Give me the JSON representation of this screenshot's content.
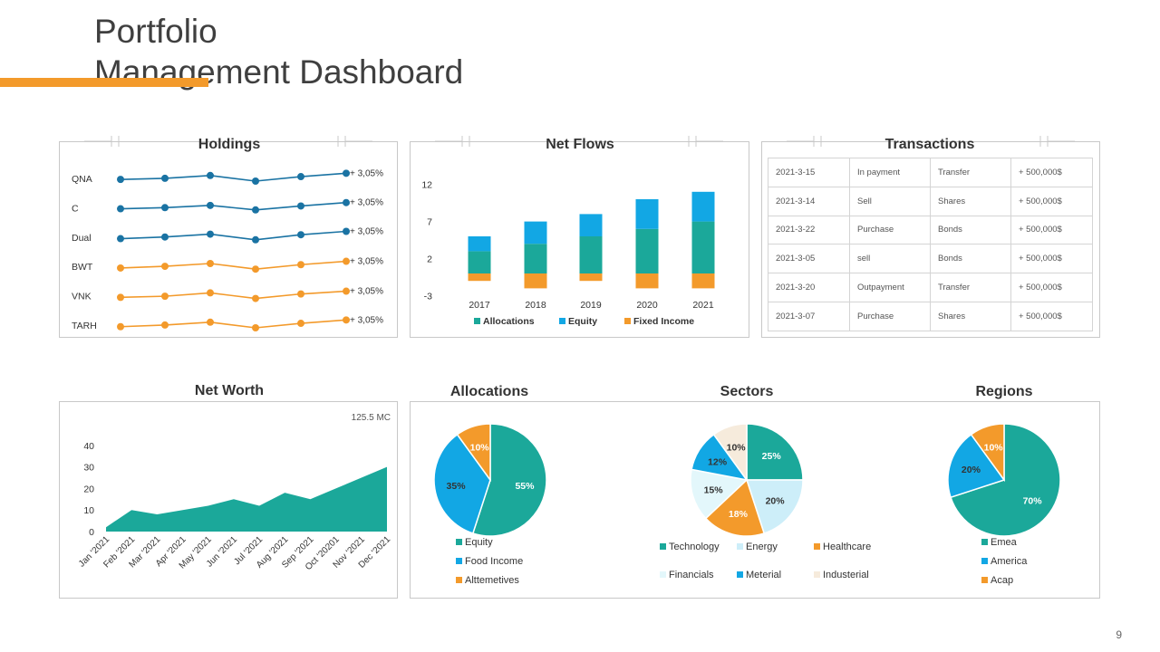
{
  "page": {
    "title_line1": "Portfolio",
    "title_line2": "Management Dashboard",
    "page_number": "9"
  },
  "colors": {
    "accent": "#f39a2b",
    "teal": "#1ba89a",
    "blue": "#12a7e4",
    "navy": "#1a73a3",
    "orange": "#f39a2b",
    "lightblue": "#cdeef9",
    "cream": "#f6ebdc"
  },
  "holdings": {
    "title": "Holdings",
    "rows": [
      {
        "label": "QNA",
        "change": "+ 3,05%",
        "color": "#1a73a3",
        "values": [
          3,
          5,
          10,
          0,
          8,
          14
        ]
      },
      {
        "label": "C",
        "change": "+ 3,05%",
        "color": "#1a73a3",
        "values": [
          3,
          5,
          9,
          1,
          8,
          14
        ]
      },
      {
        "label": "Dual",
        "change": "+ 3,05%",
        "color": "#1a73a3",
        "values": [
          2,
          5,
          10,
          0,
          9,
          15
        ]
      },
      {
        "label": "BWT",
        "change": "+ 3,05%",
        "color": "#f39a2b",
        "values": [
          2,
          5,
          10,
          0,
          8,
          14
        ]
      },
      {
        "label": "VNK",
        "change": "+ 3,05%",
        "color": "#f39a2b",
        "values": [
          2,
          4,
          10,
          0,
          8,
          13
        ]
      },
      {
        "label": "TARH",
        "change": "+ 3,05%",
        "color": "#f39a2b",
        "values": [
          2,
          5,
          10,
          0,
          8,
          14
        ]
      }
    ]
  },
  "transactions": {
    "title": "Transactions",
    "rows": [
      [
        "2021-3-15",
        "In payment",
        "Transfer",
        "+ 500,000$"
      ],
      [
        "2021-3-14",
        "Sell",
        "Shares",
        "+ 500,000$"
      ],
      [
        "2021-3-22",
        "Purchase",
        "Bonds",
        "+ 500,000$"
      ],
      [
        "2021-3-05",
        "sell",
        "Bonds",
        "+ 500,000$"
      ],
      [
        "2021-3-20",
        "Outpayment",
        "Transfer",
        "+ 500,000$"
      ],
      [
        "2021-3-07",
        "Purchase",
        "Shares",
        "+ 500,000$"
      ]
    ]
  },
  "chart_data": [
    {
      "id": "net-flows",
      "type": "bar",
      "stacked": true,
      "title": "Net Flows",
      "categories": [
        "2017",
        "2018",
        "2019",
        "2020",
        "2021"
      ],
      "series": [
        {
          "name": "Allocations",
          "color": "#1ba89a",
          "values": [
            3,
            4,
            5,
            6,
            7
          ]
        },
        {
          "name": "Equity",
          "color": "#12a7e4",
          "values": [
            2,
            3,
            3,
            4,
            4
          ]
        },
        {
          "name": "Fixed Income",
          "color": "#f39a2b",
          "values": [
            -1,
            -2,
            -1,
            -2,
            -2
          ]
        }
      ],
      "yticks": [
        12,
        7,
        2,
        -3
      ],
      "ylim": [
        -3,
        12
      ],
      "legend_position": "bottom"
    },
    {
      "id": "net-worth",
      "type": "area",
      "title": "Net Worth",
      "annotation": "125.5 MC",
      "categories": [
        "Jan '2021",
        "Feb '2021",
        "Mar '2021",
        "Apr '2021",
        "May '2021",
        "Jun '2021",
        "Jul '2021",
        "Aug '2021",
        "Sep '2021",
        "Oct '20201",
        "Nov '2021",
        "Dec '2021"
      ],
      "values": [
        2,
        10,
        8,
        10,
        12,
        15,
        12,
        18,
        15,
        20,
        25,
        30
      ],
      "yticks": [
        40,
        30,
        20,
        10,
        0
      ],
      "ylim": [
        0,
        40
      ],
      "color": "#1ba89a"
    },
    {
      "id": "allocations",
      "type": "pie",
      "title": "Allocations",
      "slices": [
        {
          "label": "Equity",
          "value": 55,
          "text": "55%",
          "color": "#1ba89a",
          "label_color": "#ffffff"
        },
        {
          "label": "Food Income",
          "value": 35,
          "text": "35%",
          "color": "#12a7e4",
          "label_color": "#333333"
        },
        {
          "label": "Alttemetives",
          "value": 10,
          "text": "10%",
          "color": "#f39a2b",
          "label_color": "#ffffff"
        }
      ]
    },
    {
      "id": "sectors",
      "type": "pie",
      "title": "Sectors",
      "slices": [
        {
          "label": "Technology",
          "value": 25,
          "text": "25%",
          "color": "#1ba89a",
          "label_color": "#ffffff"
        },
        {
          "label": "Energy",
          "value": 20,
          "text": "20%",
          "color": "#cdeef9",
          "label_color": "#333333"
        },
        {
          "label": "Healthcare",
          "value": 18,
          "text": "18%",
          "color": "#f39a2b",
          "label_color": "#ffffff"
        },
        {
          "label": "Financials",
          "value": 15,
          "text": "15%",
          "color": "#e3f7fb",
          "label_color": "#333333"
        },
        {
          "label": "Meterial",
          "value": 12,
          "text": "12%",
          "color": "#12a7e4",
          "label_color": "#333333"
        },
        {
          "label": "Industerial",
          "value": 10,
          "text": "10%",
          "color": "#f6ebdc",
          "label_color": "#333333"
        }
      ]
    },
    {
      "id": "regions",
      "type": "pie",
      "title": "Regions",
      "slices": [
        {
          "label": "Emea",
          "value": 70,
          "text": "70%",
          "color": "#1ba89a",
          "label_color": "#ffffff"
        },
        {
          "label": "America",
          "value": 20,
          "text": "20%",
          "color": "#12a7e4",
          "label_color": "#333333"
        },
        {
          "label": "Acap",
          "value": 10,
          "text": "10%",
          "color": "#f39a2b",
          "label_color": "#ffffff"
        }
      ]
    }
  ]
}
